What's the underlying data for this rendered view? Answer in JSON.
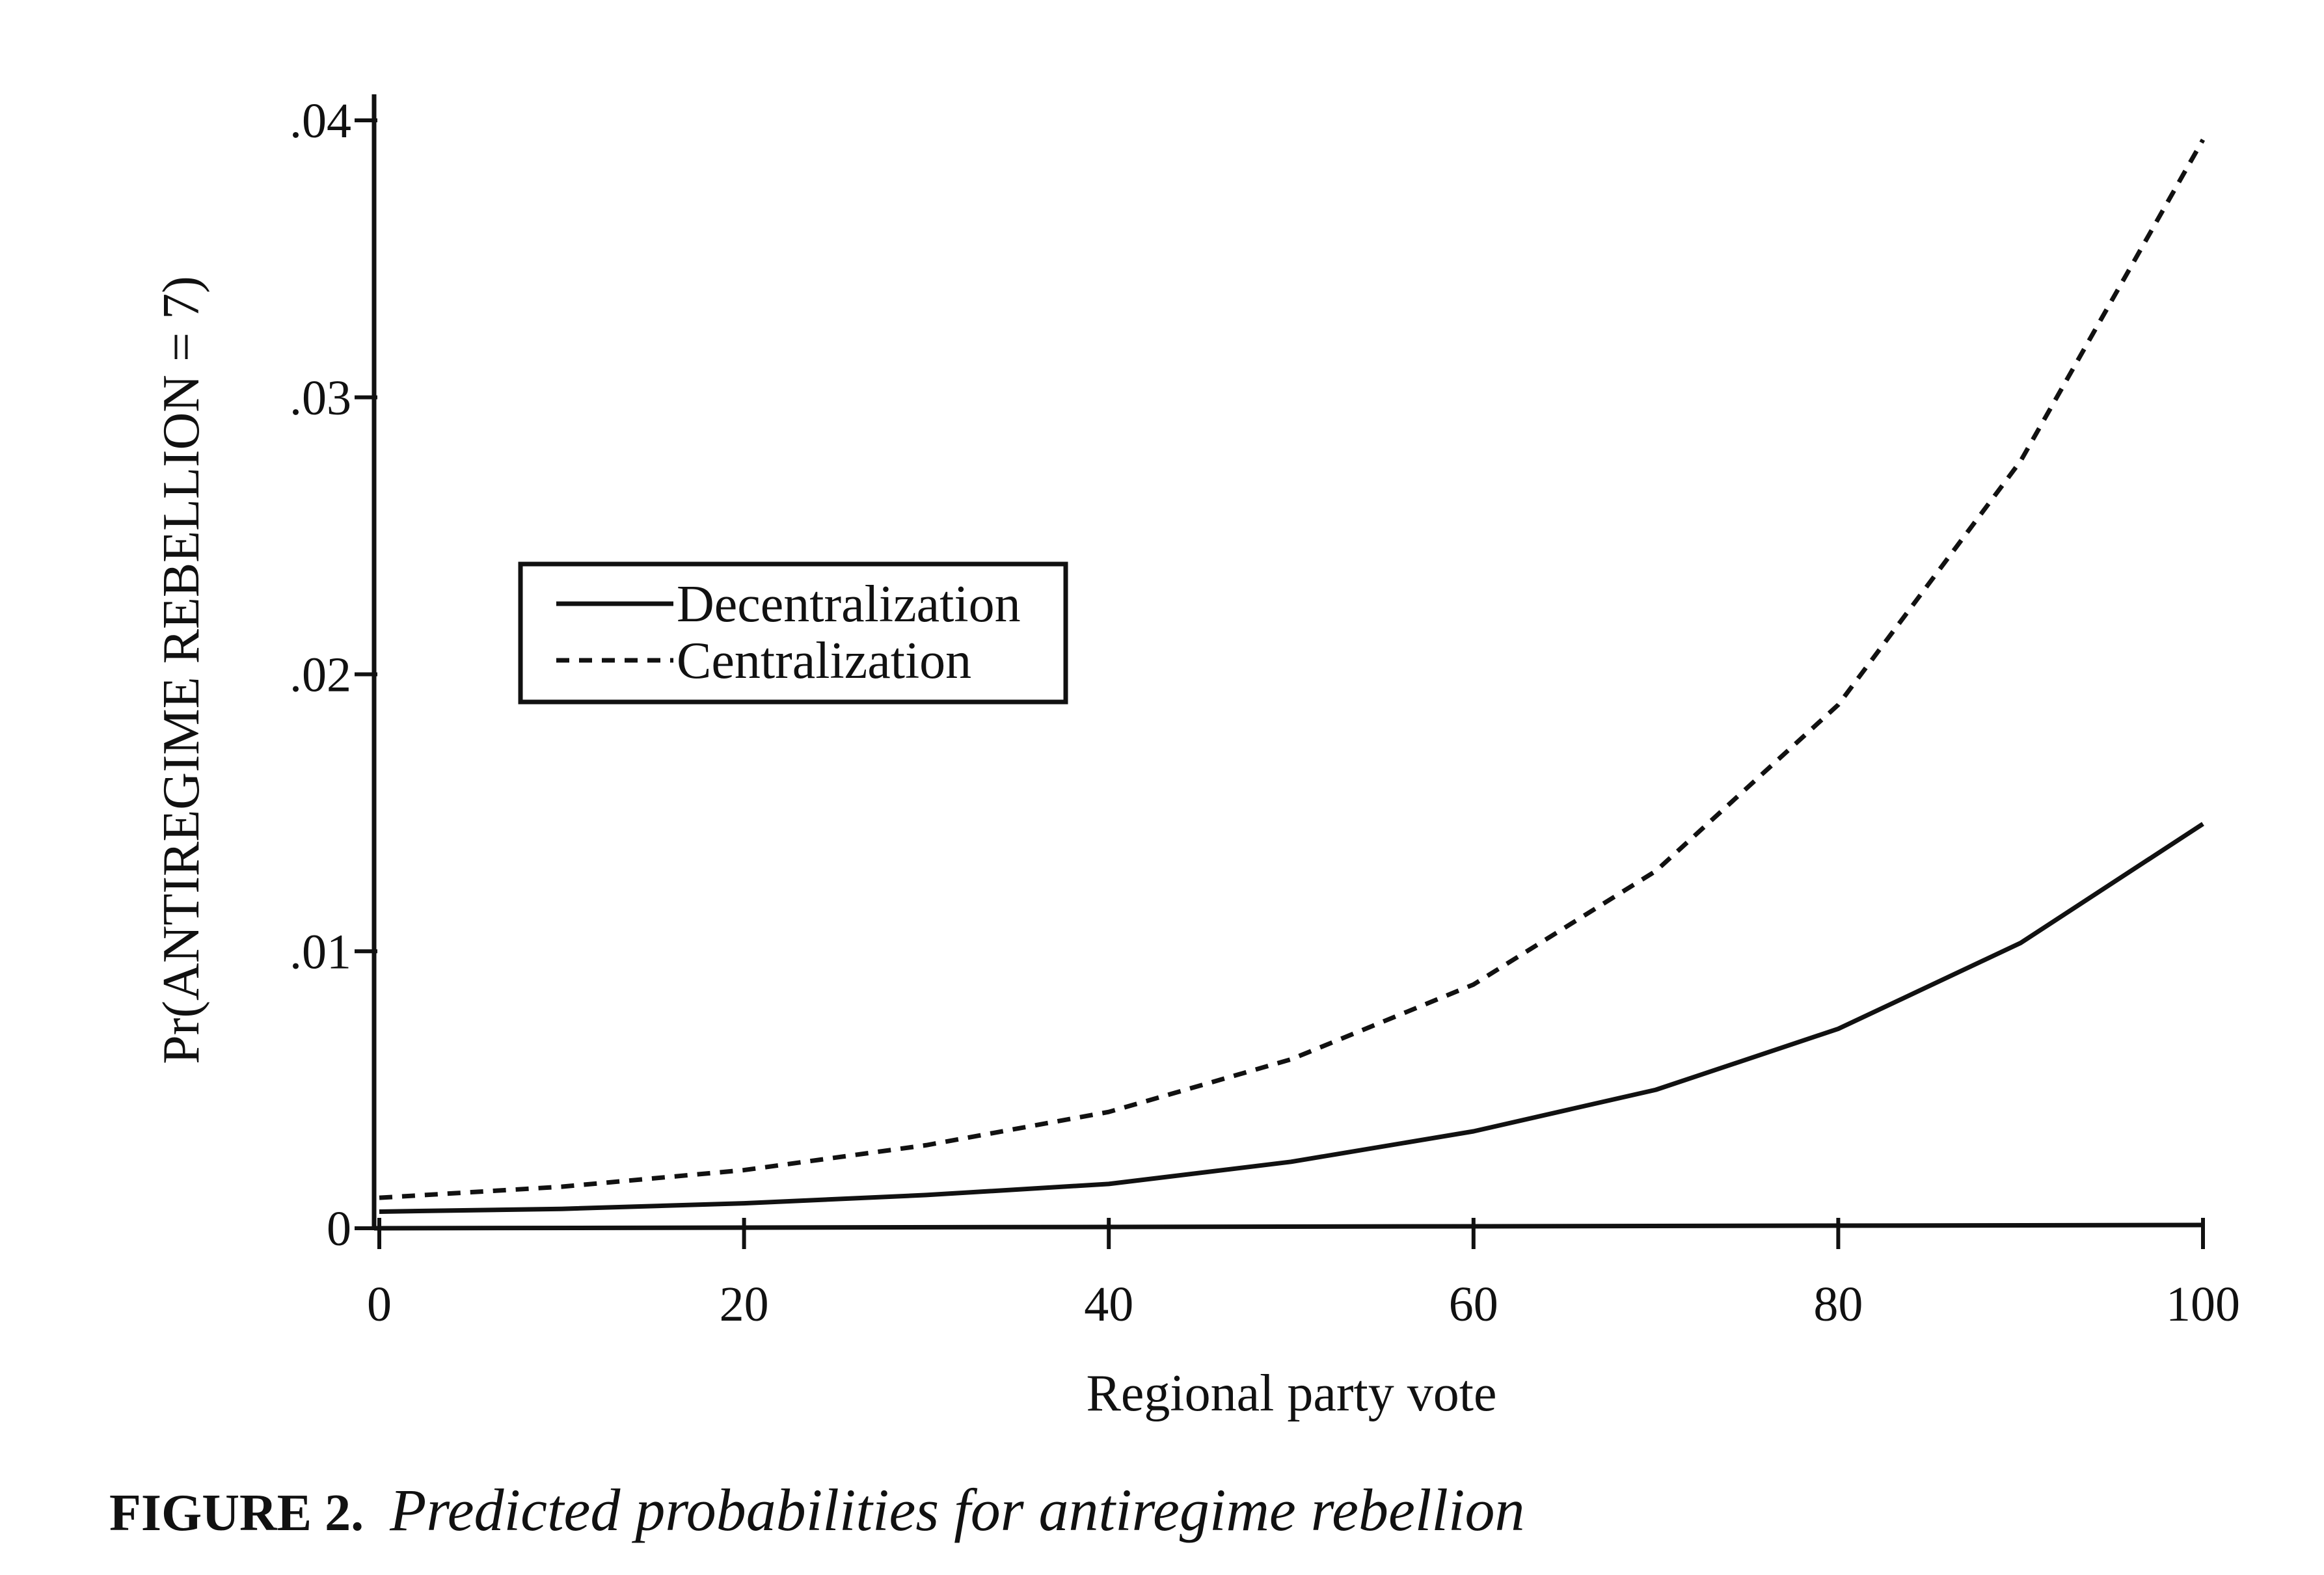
{
  "chart_data": {
    "type": "line",
    "title": "",
    "xlabel": "Regional party vote",
    "ylabel": "Pr(ANTIREGIME REBELLION = 7)",
    "xlim": [
      0,
      100
    ],
    "ylim": [
      0,
      0.04
    ],
    "x_ticks": [
      0,
      20,
      40,
      60,
      80,
      100
    ],
    "x_tick_labels": [
      "0",
      "20",
      "40",
      "60",
      "80",
      "100"
    ],
    "y_ticks": [
      0,
      0.01,
      0.02,
      0.03,
      0.04
    ],
    "y_tick_labels": [
      "0",
      ".01",
      ".02",
      ".03",
      ".04"
    ],
    "grid": false,
    "legend_position": "center-left",
    "x": [
      0,
      10,
      20,
      30,
      40,
      50,
      60,
      70,
      80,
      90,
      100
    ],
    "series": [
      {
        "name": "Decentralization",
        "style": "solid",
        "values": [
          0.0006,
          0.0007,
          0.0009,
          0.0012,
          0.0016,
          0.0024,
          0.0035,
          0.005,
          0.0072,
          0.0103,
          0.0146
        ]
      },
      {
        "name": "Centralization",
        "style": "dashed",
        "values": [
          0.0011,
          0.0015,
          0.0021,
          0.003,
          0.0042,
          0.0061,
          0.0088,
          0.0129,
          0.0189,
          0.0277,
          0.0393
        ]
      }
    ]
  },
  "caption": {
    "figure_number": "FIGURE 2.",
    "title": "Predicted probabilities for antiregime rebellion"
  }
}
